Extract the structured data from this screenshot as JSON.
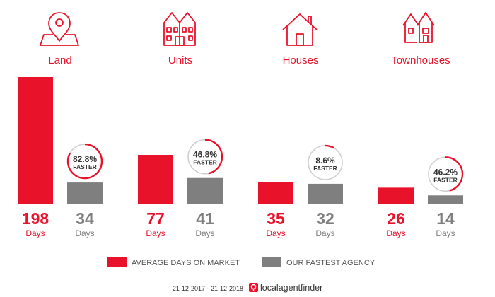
{
  "colors": {
    "accent": "#e8132b",
    "agency": "#7f7f7f",
    "ring_track": "#cfcfcf",
    "text_dark": "#333333"
  },
  "chart_data": {
    "type": "bar",
    "categories": [
      "Land",
      "Units",
      "Houses",
      "Townhouses"
    ],
    "icons": [
      "map-pin-icon",
      "apartment-icon",
      "house-icon",
      "townhouse-icon"
    ],
    "series": [
      {
        "name": "AVERAGE DAYS ON MARKET",
        "values": [
          198,
          77,
          35,
          26
        ]
      },
      {
        "name": "OUR FASTEST AGENCY",
        "values": [
          34,
          41,
          32,
          14
        ]
      }
    ],
    "unit_label": "Days",
    "faster_pct": [
      "82.8%",
      "46.8%",
      "8.6%",
      "46.2%"
    ],
    "faster_fraction": [
      0.828,
      0.468,
      0.086,
      0.462
    ],
    "faster_label": "FASTER",
    "ylim": [
      0,
      198
    ]
  },
  "footer": {
    "date_range": "21-12-2017 - 21-12-2018",
    "brand_part1": "localagent",
    "brand_part2": "finder"
  }
}
